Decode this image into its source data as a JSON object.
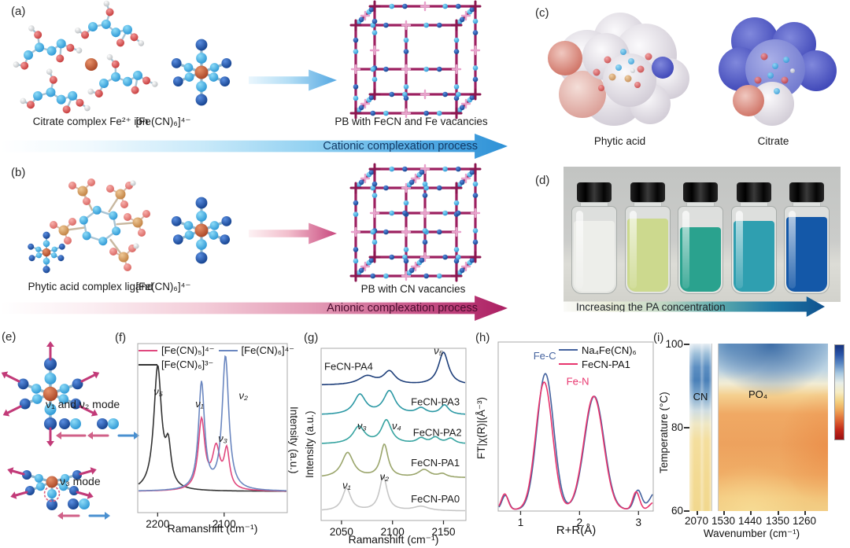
{
  "figure": {
    "panels": {
      "a": {
        "tag": "(a)",
        "caption_left": "Citrate complex Fe²⁺ ion",
        "caption_mid": "[Fe(CN)₆]⁴⁻",
        "caption_right": "PB with FeCN and Fe vacancies",
        "arrow_label": "Cationic complexation process"
      },
      "b": {
        "tag": "(b)",
        "caption_left": "Phytic acid complex ligand",
        "caption_mid": "[Fe(CN)₆]⁴⁻",
        "caption_right": "PB with CN vacancies",
        "arrow_label": "Anionic complexation process"
      },
      "c": {
        "tag": "(c)",
        "caption_left": "Phytic acid",
        "caption_right": "Citrate"
      },
      "d": {
        "tag": "(d)",
        "arrow_label": "Increasing the PA concentration",
        "vials": [
          {
            "liquid": "#edeeea"
          },
          {
            "liquid": "#ccd98e"
          },
          {
            "liquid": "#2aa28e"
          },
          {
            "liquid": "#2f9fb0"
          },
          {
            "liquid": "#1458a8"
          }
        ]
      },
      "e": {
        "tag": "(e)",
        "mode_label_12": "ν₁ and ν₂ mode",
        "mode_label_3": "ν₃ mode"
      },
      "f": {
        "tag": "(f)"
      },
      "g": {
        "tag": "(g)"
      },
      "h": {
        "tag": "(h)"
      },
      "i": {
        "tag": "(i)"
      }
    }
  },
  "chart_data": [
    {
      "id": "f",
      "type": "line",
      "xlabel": "Ramanshift (cm⁻¹)",
      "ylabel": "Intensity (a.u.)",
      "x_range": [
        2230,
        2005
      ],
      "x_ticks": [
        2200,
        2100
      ],
      "x_reversed": true,
      "grid": false,
      "legend": [
        {
          "name": "[Fe(CN)₅]⁴⁻",
          "color": "#e0487e"
        },
        {
          "name": "[Fe(CN)₆]⁴⁻",
          "color": "#6b87c0"
        },
        {
          "name": "[Fe(CN)₆]³⁻",
          "color": "#333333"
        }
      ],
      "series": [
        {
          "name": "[Fe(CN)₆]³⁻",
          "color": "#333333",
          "peaks": [
            {
              "c": 2200,
              "w": 7,
              "h": 0.92
            },
            {
              "c": 2184,
              "w": 5,
              "h": 0.28
            }
          ]
        },
        {
          "name": "[Fe(CN)₅]⁴⁻",
          "color": "#e0487e",
          "peaks": [
            {
              "c": 2134,
              "w": 6,
              "h": 0.52
            },
            {
              "c": 2112,
              "w": 7,
              "h": 0.3
            },
            {
              "c": 2096,
              "w": 5,
              "h": 0.28
            }
          ]
        },
        {
          "name": "[Fe(CN)₆]⁴⁻",
          "color": "#6b87c0",
          "peaks": [
            {
              "c": 2134,
              "w": 5.5,
              "h": 0.8
            },
            {
              "c": 2098,
              "w": 6,
              "h": 1.0
            }
          ]
        }
      ],
      "labels": [
        {
          "text": "ν₅",
          "x": 2199,
          "yf": 0.72
        },
        {
          "text": "ν₁",
          "x": 2137,
          "yf": 0.63
        },
        {
          "text": "ν₂",
          "x": 2071,
          "yf": 0.69
        },
        {
          "text": "ν₃",
          "x": 2102,
          "yf": 0.37
        }
      ]
    },
    {
      "id": "g",
      "type": "line",
      "xlabel": "Ramanshift (cm⁻¹)",
      "ylabel": "Intensity (a.u.)",
      "x_range": [
        2030,
        2172
      ],
      "x_ticks": [
        2050,
        2100,
        2150
      ],
      "grid": false,
      "label_mode": "plot",
      "series": [
        {
          "name": "FeCN-PA0",
          "color": "#c6c6c6",
          "offset": 0.055,
          "peaks": [
            {
              "c": 2055,
              "w": 5,
              "h": 0.13
            },
            {
              "c": 2091,
              "w": 4.5,
              "h": 0.2
            },
            {
              "c": 2128,
              "w": 9,
              "h": 0.025
            }
          ]
        },
        {
          "name": "FeCN-PA1",
          "color": "#9aa56b",
          "offset": 0.247,
          "peaks": [
            {
              "c": 2056,
              "w": 7,
              "h": 0.145
            },
            {
              "c": 2092,
              "w": 4.5,
              "h": 0.19
            },
            {
              "c": 2131,
              "w": 7,
              "h": 0.045
            },
            {
              "c": 2149,
              "w": 5,
              "h": 0.02
            }
          ]
        },
        {
          "name": "FeCN-PA2",
          "color": "#35a3a0",
          "offset": 0.443,
          "peaks": [
            {
              "c": 2067,
              "w": 7,
              "h": 0.1
            },
            {
              "c": 2094,
              "w": 6,
              "h": 0.135
            },
            {
              "c": 2128,
              "w": 5,
              "h": 0.03
            },
            {
              "c": 2142,
              "w": 5,
              "h": 0.035
            },
            {
              "c": 2157,
              "w": 5,
              "h": 0.03
            }
          ]
        },
        {
          "name": "FeCN-PA3",
          "color": "#2b98a4",
          "offset": 0.612,
          "peaks": [
            {
              "c": 2068,
              "w": 7,
              "h": 0.115
            },
            {
              "c": 2097,
              "w": 7,
              "h": 0.135
            },
            {
              "c": 2128,
              "w": 6,
              "h": 0.035
            },
            {
              "c": 2151,
              "w": 5,
              "h": 0.055
            }
          ]
        },
        {
          "name": "FeCN-PA4",
          "color": "#1e3f7a",
          "offset": 0.785,
          "peaks": [
            {
              "c": 2075,
              "w": 10,
              "h": 0.05
            },
            {
              "c": 2097,
              "w": 7,
              "h": 0.075
            },
            {
              "c": 2150,
              "w": 6,
              "h": 0.19
            }
          ]
        }
      ],
      "labels": [
        {
          "text": "FeCN-PA4",
          "x": 2057,
          "yf": 0.875
        },
        {
          "text": "ν₅",
          "x": 2145,
          "yf": 0.965
        },
        {
          "text": "FeCN-PA3",
          "x": 2142,
          "yf": 0.67
        },
        {
          "text": "ν₃",
          "x": 2070,
          "yf": 0.53
        },
        {
          "text": "ν₄",
          "x": 2104,
          "yf": 0.53
        },
        {
          "text": "FeCN-PA2",
          "x": 2144,
          "yf": 0.49
        },
        {
          "text": "FeCN-PA1",
          "x": 2142,
          "yf": 0.315
        },
        {
          "text": "ν₁",
          "x": 2055,
          "yf": 0.185
        },
        {
          "text": "ν₂",
          "x": 2092,
          "yf": 0.235
        },
        {
          "text": "FeCN-PA0",
          "x": 2142,
          "yf": 0.105
        }
      ]
    },
    {
      "id": "h",
      "type": "line",
      "xlabel": "R+R(Å)",
      "ylabel": "FT|χ(R)|(Å⁻³)",
      "x_range": [
        0.62,
        3.25
      ],
      "x_ticks": [
        1,
        2,
        3
      ],
      "grid": false,
      "fn": "gauss",
      "legend": [
        {
          "name": "Na₄Fe(CN)₆",
          "color": "#44629e"
        },
        {
          "name": "FeCN-PA1",
          "color": "#e8356e"
        }
      ],
      "series": [
        {
          "name": "Na₄Fe(CN)₆",
          "color": "#44629e",
          "peaks": [
            {
              "c": 1.42,
              "w": 0.2,
              "h": 0.96
            },
            {
              "c": 2.25,
              "w": 0.235,
              "h": 0.8
            },
            {
              "c": 0.74,
              "w": 0.08,
              "h": 0.1
            },
            {
              "c": 2.99,
              "w": 0.09,
              "h": 0.135
            },
            {
              "c": 3.32,
              "w": 0.16,
              "h": 0.14
            }
          ]
        },
        {
          "name": "FeCN-PA1",
          "color": "#e8356e",
          "peaks": [
            {
              "c": 1.4,
              "w": 0.2,
              "h": 0.9
            },
            {
              "c": 2.24,
              "w": 0.235,
              "h": 0.8
            },
            {
              "c": 0.73,
              "w": 0.08,
              "h": 0.11
            },
            {
              "c": 2.96,
              "w": 0.08,
              "h": 0.125
            },
            {
              "c": 3.26,
              "w": 0.1,
              "h": 0.05
            }
          ]
        }
      ],
      "labels": [
        {
          "text": "Fe-C",
          "x": 1.41,
          "yf": 1.06,
          "color": "#44629e"
        },
        {
          "text": "Fe-N",
          "x": 1.97,
          "yf": 0.88,
          "color": "#e8356e"
        }
      ]
    },
    {
      "id": "i",
      "type": "heatmap",
      "xlabel": "Wavenumber (cm⁻¹)",
      "ylabel": "Temperature (°C)",
      "x_ticks": [
        "2070",
        "1530",
        "1440",
        "1350",
        "1260"
      ],
      "y_ticks": [
        "100",
        "80",
        "60"
      ],
      "y_range": [
        60,
        100
      ],
      "region_labels": [
        {
          "text": "CN",
          "color": "#3a6ca8"
        },
        {
          "text": "PO₄",
          "color": "#3a6ca8"
        }
      ],
      "colorbar": [
        "#16337f",
        "#2a55a8",
        "#5d8ac4",
        "#a8c8e0",
        "#e8eee8",
        "#f6ecc2",
        "#f3cf7e",
        "#eda054",
        "#dd6432",
        "#c22818",
        "#9a0f12"
      ],
      "broken_axis": true
    }
  ]
}
